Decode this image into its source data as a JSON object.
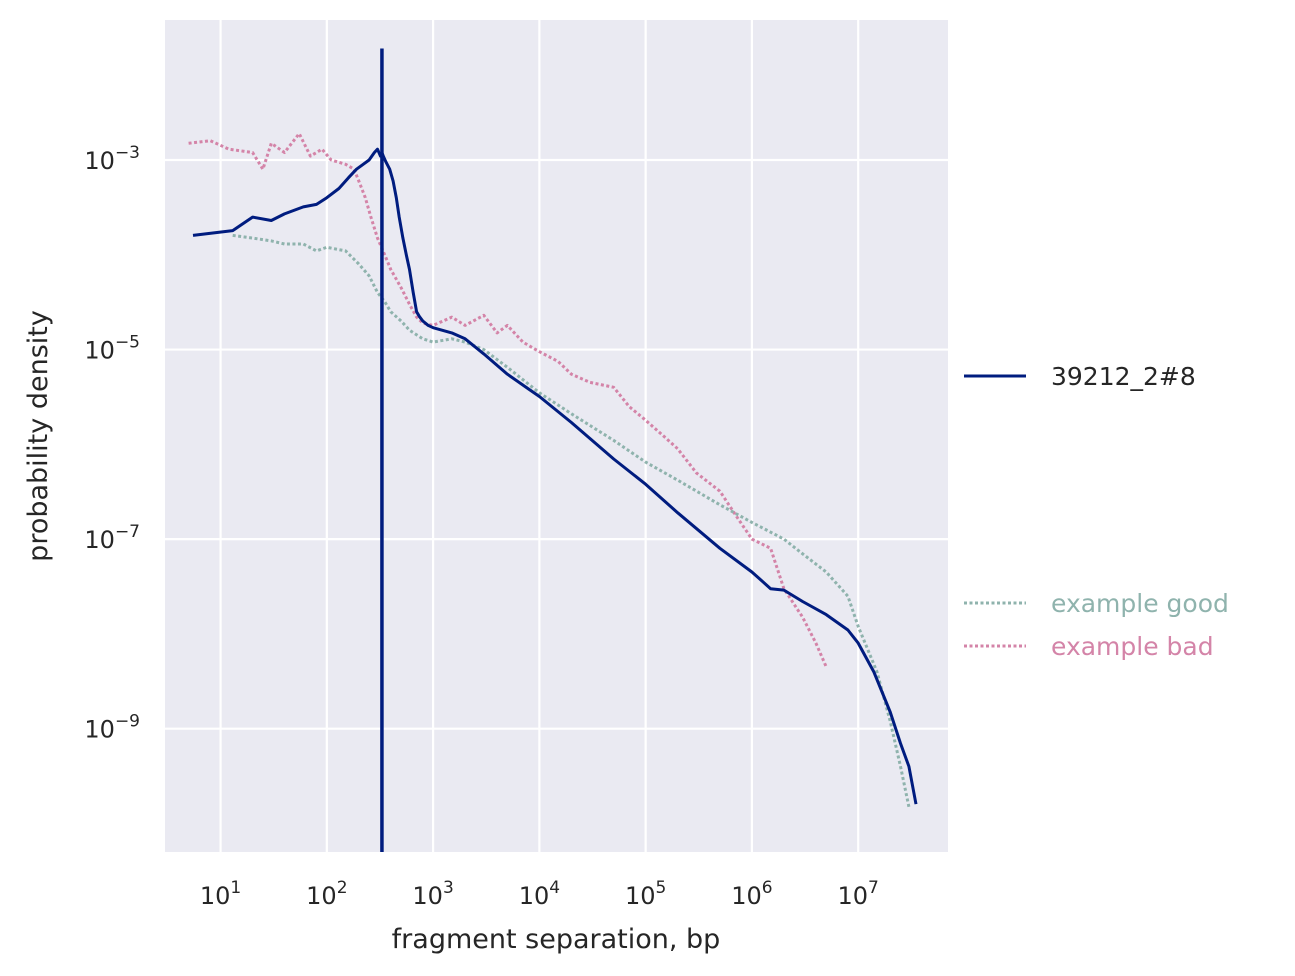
{
  "chart_data": {
    "type": "line",
    "xlabel": "fragment separation, bp",
    "ylabel": "probability density",
    "x_scale": "log",
    "y_scale": "log",
    "xlim": [
      3,
      70000000
    ],
    "ylim": [
      5e-11,
      0.03
    ],
    "grid": true,
    "legend_position": "right",
    "x_ticks": [
      {
        "value": 10,
        "base": "10",
        "exp": "1"
      },
      {
        "value": 100,
        "base": "10",
        "exp": "2"
      },
      {
        "value": 1000,
        "base": "10",
        "exp": "3"
      },
      {
        "value": 10000,
        "base": "10",
        "exp": "4"
      },
      {
        "value": 100000,
        "base": "10",
        "exp": "5"
      },
      {
        "value": 1000000,
        "base": "10",
        "exp": "6"
      },
      {
        "value": 10000000,
        "base": "10",
        "exp": "7"
      }
    ],
    "y_ticks": [
      {
        "value": 0.001,
        "base": "10",
        "exp": "−3"
      },
      {
        "value": 1e-05,
        "base": "10",
        "exp": "−5"
      },
      {
        "value": 1e-07,
        "base": "10",
        "exp": "−7"
      },
      {
        "value": 1e-09,
        "base": "10",
        "exp": "−9"
      }
    ],
    "series": [
      {
        "name": "39212_2#8",
        "color": "#001c7f",
        "style": "solid",
        "x": [
          5.5,
          13,
          20,
          30,
          40,
          60,
          80,
          100,
          130,
          160,
          190,
          220,
          250,
          280,
          300,
          320,
          330,
          340,
          360,
          390,
          420,
          450,
          480,
          520,
          560,
          600,
          650,
          700,
          750,
          800,
          900,
          1000,
          1500,
          2000,
          3000,
          5000,
          8000,
          10000,
          20000,
          50000,
          100000,
          200000,
          500000,
          1000000,
          1500000,
          2000000,
          3000000,
          5000000,
          8000000,
          10000000,
          14000000,
          20000000,
          25000000,
          30000000,
          35000000
        ],
        "y": [
          0.00016,
          0.00018,
          0.00025,
          0.00023,
          0.00027,
          0.00032,
          0.00034,
          0.0004,
          0.0005,
          0.00065,
          0.0008,
          0.0009,
          0.001,
          0.0012,
          0.0013,
          0.0011,
          0.0012,
          0.0011,
          0.00095,
          0.0008,
          0.0006,
          0.0004,
          0.00025,
          0.00015,
          0.0001,
          7e-05,
          4e-05,
          2.5e-05,
          2.2e-05,
          2e-05,
          1.8e-05,
          1.7e-05,
          1.5e-05,
          1.3e-05,
          9e-06,
          5.5e-06,
          3.8e-06,
          3.2e-06,
          1.7e-06,
          7e-07,
          3.8e-07,
          1.9e-07,
          8e-08,
          4.5e-08,
          3e-08,
          2.9e-08,
          2.2e-08,
          1.6e-08,
          1.1e-08,
          8e-09,
          4e-09,
          1.5e-09,
          7e-10,
          4e-10,
          1.6e-10
        ]
      },
      {
        "name": "example good",
        "color": "#8fb3ad",
        "style": "dotted",
        "x": [
          13,
          20,
          30,
          40,
          60,
          80,
          100,
          150,
          200,
          250,
          300,
          350,
          400,
          500,
          600,
          800,
          1000,
          1500,
          2000,
          3000,
          5000,
          10000,
          20000,
          50000,
          100000,
          200000,
          500000,
          1000000,
          2000000,
          3000000,
          5000000,
          8000000,
          10000000,
          15000000,
          20000000,
          25000000,
          30000000
        ],
        "y": [
          0.00016,
          0.00015,
          0.00014,
          0.00013,
          0.00013,
          0.00011,
          0.00012,
          0.00011,
          8e-05,
          6e-05,
          4e-05,
          3.2e-05,
          2.5e-05,
          2e-05,
          1.6e-05,
          1.3e-05,
          1.2e-05,
          1.3e-05,
          1.2e-05,
          1e-05,
          6.5e-06,
          3.5e-06,
          2.1e-06,
          1.1e-06,
          6.5e-07,
          4.2e-07,
          2.3e-07,
          1.5e-07,
          1e-07,
          7e-08,
          4.5e-08,
          2.5e-08,
          1.2e-08,
          4e-09,
          1.2e-09,
          4e-10,
          1.5e-10
        ]
      },
      {
        "name": "example bad",
        "color": "#d484a8",
        "style": "dotted",
        "x": [
          5,
          8,
          12,
          20,
          25,
          30,
          40,
          55,
          70,
          90,
          110,
          150,
          180,
          200,
          230,
          260,
          300,
          350,
          400,
          500,
          600,
          700,
          800,
          1000,
          1500,
          2000,
          3000,
          4000,
          5000,
          7000,
          10000,
          15000,
          20000,
          30000,
          50000,
          70000,
          100000,
          150000,
          200000,
          300000,
          500000,
          700000,
          1000000,
          1500000,
          2000000,
          3000000,
          4000000,
          5000000
        ],
        "y": [
          0.0015,
          0.0016,
          0.0013,
          0.0012,
          0.0008,
          0.0015,
          0.0012,
          0.0019,
          0.0011,
          0.0013,
          0.001,
          0.0009,
          0.0008,
          0.0006,
          0.0004,
          0.00025,
          0.00015,
          0.0001,
          7e-05,
          4.5e-05,
          3e-05,
          2.2e-05,
          1.9e-05,
          1.8e-05,
          2.2e-05,
          1.8e-05,
          2.3e-05,
          1.5e-05,
          1.8e-05,
          1.2e-05,
          9.5e-06,
          7.5e-06,
          5.5e-06,
          4.5e-06,
          4e-06,
          2.5e-06,
          1.8e-06,
          1.2e-06,
          9e-07,
          5e-07,
          3.2e-07,
          1.8e-07,
          1e-07,
          8e-08,
          3e-08,
          1.5e-08,
          8e-09,
          4.5e-09
        ]
      }
    ],
    "spike": {
      "x": 330,
      "y_top": 0.015,
      "series": "39212_2#8"
    }
  }
}
